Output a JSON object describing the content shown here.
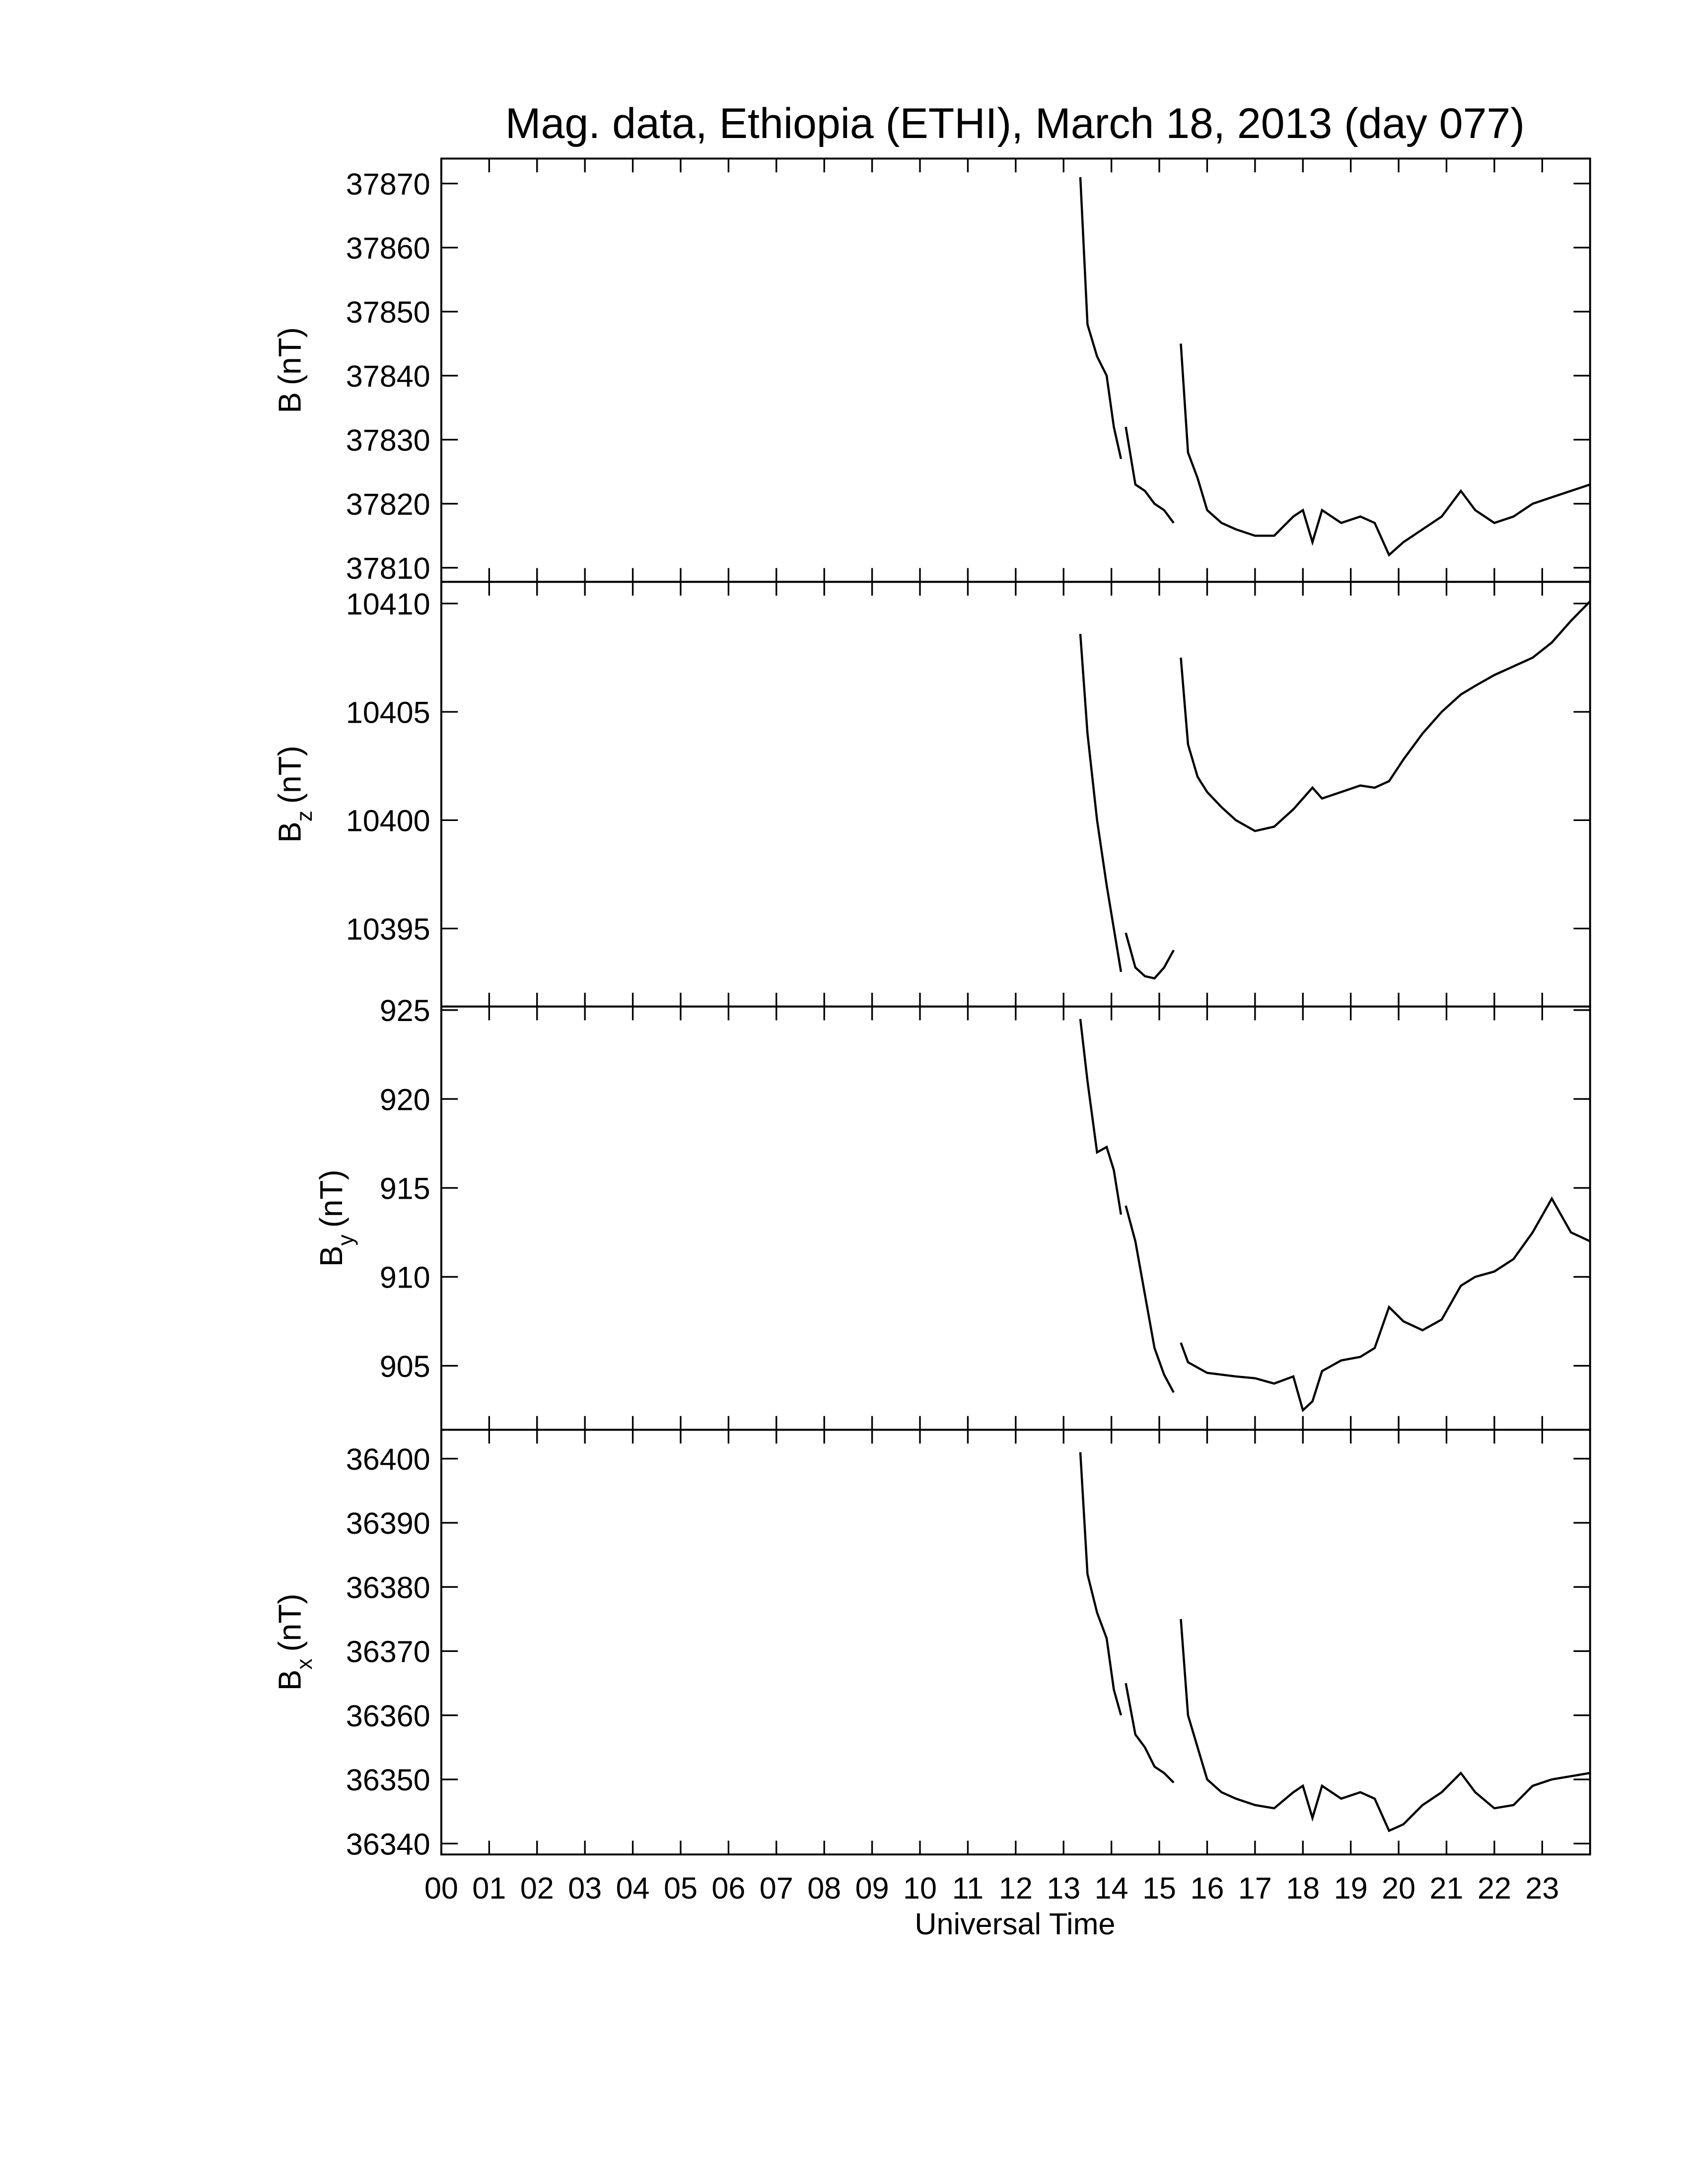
{
  "chart_data": [
    {
      "type": "line",
      "title": "Mag. data, Ethiopia (ETHI), March 18, 2013 (day 077)",
      "ylabel": "B",
      "ylabel_unit": "(nT)",
      "xlim": [
        0,
        24
      ],
      "xticks": [
        0,
        1,
        2,
        3,
        4,
        5,
        6,
        7,
        8,
        9,
        10,
        11,
        12,
        13,
        14,
        15,
        16,
        17,
        18,
        19,
        20,
        21,
        22,
        23
      ],
      "ylim": [
        37807.8,
        37873.9
      ],
      "yticks": [
        37810,
        37820,
        37830,
        37840,
        37850,
        37860,
        37870
      ],
      "x": [
        13.35,
        13.5,
        13.7,
        13.9,
        14.05,
        14.2,
        14.25,
        14.3,
        14.5,
        14.7,
        14.9,
        15.1,
        15.3,
        15.38,
        15.45,
        15.6,
        15.8,
        16.0,
        16.3,
        16.6,
        17.0,
        17.4,
        17.8,
        18.0,
        18.2,
        18.4,
        18.8,
        19.2,
        19.5,
        19.8,
        20.1,
        20.5,
        20.9,
        21.3,
        21.6,
        22.0,
        22.4,
        22.8,
        23.2,
        23.6,
        24.0
      ],
      "series": [
        {
          "color": "#000000",
          "values": [
            37871,
            37848,
            37843,
            37840,
            37832,
            37827,
            null,
            37832,
            37823,
            37822,
            37820,
            37819,
            37817,
            null,
            37845,
            37828,
            37824,
            37819,
            37817,
            37816,
            37815,
            37815,
            37818,
            37819,
            37814,
            37819,
            37817,
            37818,
            37817,
            37812,
            37814,
            37816,
            37818,
            37822,
            37819,
            37817,
            37818,
            37820,
            37821,
            37822,
            37823
          ]
        }
      ]
    },
    {
      "type": "line",
      "ylabel": "B",
      "ylabel_sub": "z",
      "ylabel_unit": "(nT)",
      "xlim": [
        0,
        24
      ],
      "xticks": [
        0,
        1,
        2,
        3,
        4,
        5,
        6,
        7,
        8,
        9,
        10,
        11,
        12,
        13,
        14,
        15,
        16,
        17,
        18,
        19,
        20,
        21,
        22,
        23
      ],
      "ylim": [
        10391.4,
        10411.0
      ],
      "yticks": [
        10395,
        10400,
        10405,
        10410
      ],
      "x": [
        13.35,
        13.5,
        13.7,
        13.9,
        14.05,
        14.2,
        14.25,
        14.3,
        14.5,
        14.7,
        14.9,
        15.1,
        15.3,
        15.38,
        15.45,
        15.6,
        15.8,
        16.0,
        16.3,
        16.6,
        17.0,
        17.4,
        17.8,
        18.0,
        18.2,
        18.4,
        18.8,
        19.2,
        19.5,
        19.8,
        20.1,
        20.5,
        20.9,
        21.3,
        21.6,
        22.0,
        22.4,
        22.8,
        23.2,
        23.6,
        24.0
      ],
      "series": [
        {
          "color": "#000000",
          "values": [
            10408.6,
            10404,
            10400,
            10397,
            10395,
            10393,
            null,
            10394.8,
            10393.2,
            10392.8,
            10392.7,
            10393.2,
            10394,
            null,
            10407.5,
            10403.5,
            10402,
            10401.3,
            10400.6,
            10400.0,
            10399.5,
            10399.7,
            10400.5,
            10401,
            10401.5,
            10401,
            10401.3,
            10401.6,
            10401.5,
            10401.8,
            10402.8,
            10404,
            10405,
            10405.8,
            10406.2,
            10406.7,
            10407.1,
            10407.5,
            10408.2,
            10409.2,
            10410.1
          ]
        }
      ]
    },
    {
      "type": "line",
      "ylabel": "B",
      "ylabel_sub": "y",
      "ylabel_unit": "(nT)",
      "xlim": [
        0,
        24
      ],
      "xticks": [
        0,
        1,
        2,
        3,
        4,
        5,
        6,
        7,
        8,
        9,
        10,
        11,
        12,
        13,
        14,
        15,
        16,
        17,
        18,
        19,
        20,
        21,
        22,
        23
      ],
      "ylim": [
        901.4,
        925.2
      ],
      "yticks": [
        905,
        910,
        915,
        920,
        925
      ],
      "x": [
        13.35,
        13.5,
        13.7,
        13.9,
        14.05,
        14.2,
        14.25,
        14.3,
        14.5,
        14.7,
        14.9,
        15.1,
        15.3,
        15.38,
        15.45,
        15.6,
        15.8,
        16.0,
        16.3,
        16.6,
        17.0,
        17.4,
        17.8,
        18.0,
        18.2,
        18.4,
        18.8,
        19.2,
        19.5,
        19.8,
        20.1,
        20.5,
        20.9,
        21.3,
        21.6,
        22.0,
        22.4,
        22.8,
        23.2,
        23.6,
        24.0
      ],
      "series": [
        {
          "color": "#000000",
          "values": [
            924.5,
            921,
            917,
            917.3,
            916,
            913.5,
            null,
            914,
            912,
            909,
            906,
            904.5,
            903.5,
            null,
            906.3,
            905.2,
            904.9,
            904.6,
            904.5,
            904.4,
            904.3,
            904,
            904.4,
            902.5,
            903,
            904.7,
            905.3,
            905.5,
            906,
            908.3,
            907.5,
            907,
            907.6,
            909.5,
            910,
            910.3,
            911,
            912.5,
            914.4,
            912.5,
            912
          ]
        }
      ]
    },
    {
      "type": "line",
      "ylabel": "B",
      "ylabel_sub": "x",
      "ylabel_unit": "(nT)",
      "xlabel": "Universal Time",
      "xlim": [
        0,
        24
      ],
      "xticks": [
        {
          "value": 0,
          "label": "00"
        },
        {
          "value": 1,
          "label": "01"
        },
        {
          "value": 2,
          "label": "02"
        },
        {
          "value": 3,
          "label": "03"
        },
        {
          "value": 4,
          "label": "04"
        },
        {
          "value": 5,
          "label": "05"
        },
        {
          "value": 6,
          "label": "06"
        },
        {
          "value": 7,
          "label": "07"
        },
        {
          "value": 8,
          "label": "08"
        },
        {
          "value": 9,
          "label": "09"
        },
        10,
        11,
        12,
        13,
        14,
        15,
        16,
        17,
        18,
        19,
        20,
        21,
        22,
        23
      ],
      "ylim": [
        36338.3,
        36404.5
      ],
      "yticks": [
        36340,
        36350,
        36360,
        36370,
        36380,
        36390,
        36400
      ],
      "x": [
        13.35,
        13.5,
        13.7,
        13.9,
        14.05,
        14.2,
        14.25,
        14.3,
        14.5,
        14.7,
        14.9,
        15.1,
        15.3,
        15.38,
        15.45,
        15.6,
        15.8,
        16.0,
        16.3,
        16.6,
        17.0,
        17.4,
        17.8,
        18.0,
        18.2,
        18.4,
        18.8,
        19.2,
        19.5,
        19.8,
        20.1,
        20.5,
        20.9,
        21.3,
        21.6,
        22.0,
        22.4,
        22.8,
        23.2,
        23.6,
        24.0
      ],
      "series": [
        {
          "color": "#000000",
          "values": [
            36401,
            36382,
            36376,
            36372,
            36364,
            36360,
            null,
            36365,
            36357,
            36355,
            36352,
            36351,
            36349.5,
            null,
            36375,
            36360,
            36355,
            36350,
            36348,
            36347,
            36346,
            36345.5,
            36348,
            36349,
            36344,
            36349,
            36347,
            36348,
            36347,
            36342,
            36343,
            36346,
            36348,
            36351,
            36348,
            36345.5,
            36346,
            36349,
            36350,
            36350.5,
            36351
          ]
        }
      ]
    }
  ]
}
